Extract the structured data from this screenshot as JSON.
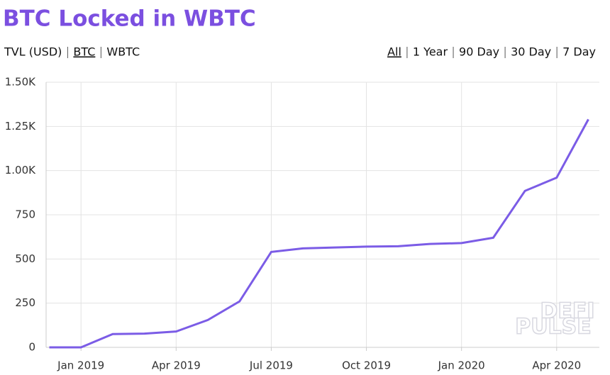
{
  "chart_data": {
    "type": "line",
    "title": "BTC Locked in WBTC",
    "units": [
      "TVL (USD)",
      "BTC",
      "WBTC"
    ],
    "active_unit": "BTC",
    "ranges": [
      "All",
      "1 Year",
      "90 Day",
      "30 Day",
      "7 Day"
    ],
    "active_range": "All",
    "watermark": [
      "DEFI",
      "PULSE"
    ],
    "x": [
      "2018-12",
      "2019-01",
      "2019-02",
      "2019-03",
      "2019-04",
      "2019-05",
      "2019-06",
      "2019-07",
      "2019-08",
      "2019-09",
      "2019-10",
      "2019-11",
      "2019-12",
      "2020-01",
      "2020-02",
      "2020-03",
      "2020-04",
      "2020-05"
    ],
    "series": [
      {
        "name": "BTC",
        "color": "#7b5ce6",
        "values": [
          0,
          0,
          75,
          78,
          90,
          155,
          260,
          540,
          560,
          565,
          570,
          572,
          585,
          590,
          620,
          885,
          960,
          1290
        ]
      }
    ],
    "xlim": [
      "2018-12",
      "2020-05"
    ],
    "xticks": [
      {
        "value": "2019-01",
        "label": "Jan 2019"
      },
      {
        "value": "2019-04",
        "label": "Apr 2019"
      },
      {
        "value": "2019-07",
        "label": "Jul 2019"
      },
      {
        "value": "2019-10",
        "label": "Oct 2019"
      },
      {
        "value": "2020-01",
        "label": "Jan 2020"
      },
      {
        "value": "2020-04",
        "label": "Apr 2020"
      }
    ],
    "ylim": [
      0,
      1500
    ],
    "yticks": [
      0,
      250,
      500,
      750,
      {
        "value": 1000,
        "label": "1.00K"
      },
      {
        "value": 1250,
        "label": "1.25K"
      },
      {
        "value": 1500,
        "label": "1.50K"
      }
    ],
    "grid": true
  }
}
